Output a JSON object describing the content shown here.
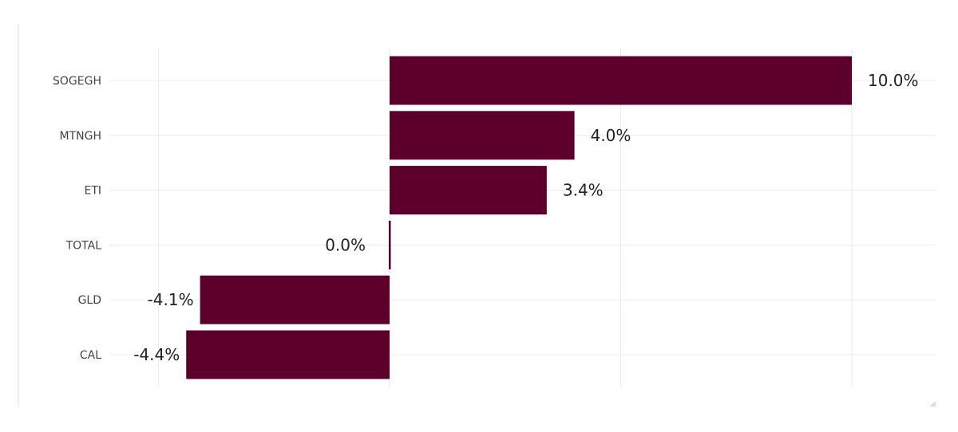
{
  "chart_data": {
    "type": "bar",
    "orientation": "horizontal",
    "categories": [
      "SOGEGH",
      "MTNGH",
      "ETI",
      "TOTAL",
      "GLD",
      "CAL"
    ],
    "values": [
      10.0,
      4.0,
      3.4,
      0.0,
      -4.1,
      -4.4
    ],
    "value_labels": [
      "10.0%",
      "4.0%",
      "3.4%",
      "0.0%",
      "-4.1%",
      "-4.4%"
    ],
    "title": "",
    "xlabel": "",
    "ylabel": "",
    "xlim": [
      -5,
      11
    ],
    "grid": true,
    "legend": "none",
    "bar_color": "#5c002b",
    "grid_color": "#ebebeb",
    "axis_color": "#d9d9d9"
  }
}
